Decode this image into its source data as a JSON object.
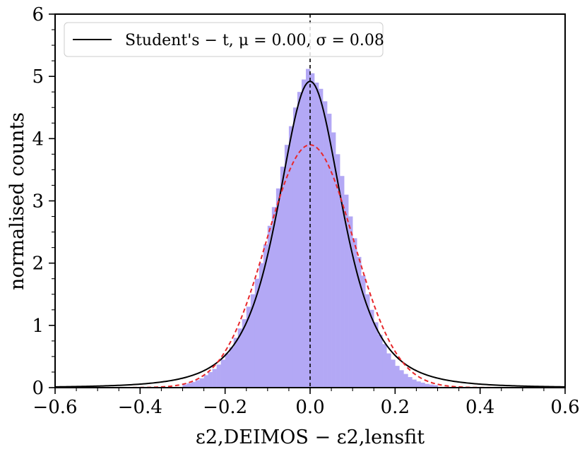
{
  "chart_data": {
    "type": "bar",
    "xlabel": "ε2,DEIMOS − ε2,lensfit",
    "ylabel": "normalised counts",
    "xlim": [
      -0.6,
      0.6
    ],
    "ylim": [
      0,
      6
    ],
    "xticks": [
      "−0.6",
      "−0.4",
      "−0.2",
      "0.0",
      "0.2",
      "0.4",
      "0.6"
    ],
    "yticks": [
      "0",
      "1",
      "2",
      "3",
      "4",
      "5",
      "6"
    ],
    "grid": false,
    "legend_position": "top-left",
    "legend": [
      {
        "label": "Student's − t, μ = 0.00, σ = 0.08",
        "color": "#000000",
        "style": "solid"
      }
    ],
    "histogram": {
      "color": "#b3a8f5",
      "bins": [
        -0.3,
        -0.29,
        -0.28,
        -0.27,
        -0.26,
        -0.25,
        -0.24,
        -0.23,
        -0.22,
        -0.21,
        -0.2,
        -0.19,
        -0.18,
        -0.17,
        -0.16,
        -0.15,
        -0.14,
        -0.13,
        -0.12,
        -0.11,
        -0.1,
        -0.09,
        -0.08,
        -0.07,
        -0.06,
        -0.05,
        -0.04,
        -0.03,
        -0.02,
        -0.01,
        0.0,
        0.01,
        0.02,
        0.03,
        0.04,
        0.05,
        0.06,
        0.07,
        0.08,
        0.09,
        0.1,
        0.11,
        0.12,
        0.13,
        0.14,
        0.15,
        0.16,
        0.17,
        0.18,
        0.19,
        0.2,
        0.21,
        0.22,
        0.23,
        0.24,
        0.25,
        0.26,
        0.27,
        0.28,
        0.29
      ],
      "values": [
        0.05,
        0.07,
        0.09,
        0.12,
        0.15,
        0.2,
        0.25,
        0.3,
        0.37,
        0.45,
        0.55,
        0.65,
        0.8,
        0.95,
        1.1,
        1.3,
        1.5,
        1.75,
        2.0,
        2.3,
        2.6,
        2.9,
        3.2,
        3.55,
        3.9,
        4.2,
        4.5,
        4.75,
        4.95,
        5.12,
        5.05,
        4.9,
        4.8,
        4.6,
        4.4,
        4.1,
        3.75,
        3.4,
        3.1,
        2.75,
        2.4,
        2.1,
        1.8,
        1.5,
        1.25,
        1.05,
        0.85,
        0.7,
        0.55,
        0.45,
        0.35,
        0.28,
        0.22,
        0.17,
        0.13,
        0.1,
        0.08,
        0.06,
        0.05,
        0.04
      ]
    },
    "series": [
      {
        "name": "Student's − t, μ = 0.00, σ = 0.08",
        "type": "student-t",
        "mu": 0.0,
        "sigma": 0.08,
        "peak": 4.92,
        "color": "#000000",
        "style": "solid"
      },
      {
        "type": "gaussian",
        "mu": 0.0,
        "peak": 3.9,
        "color": "#e8282b",
        "style": "dashed"
      }
    ],
    "vline": {
      "x": 0.0,
      "color": "#000000",
      "style": "dashed"
    }
  }
}
